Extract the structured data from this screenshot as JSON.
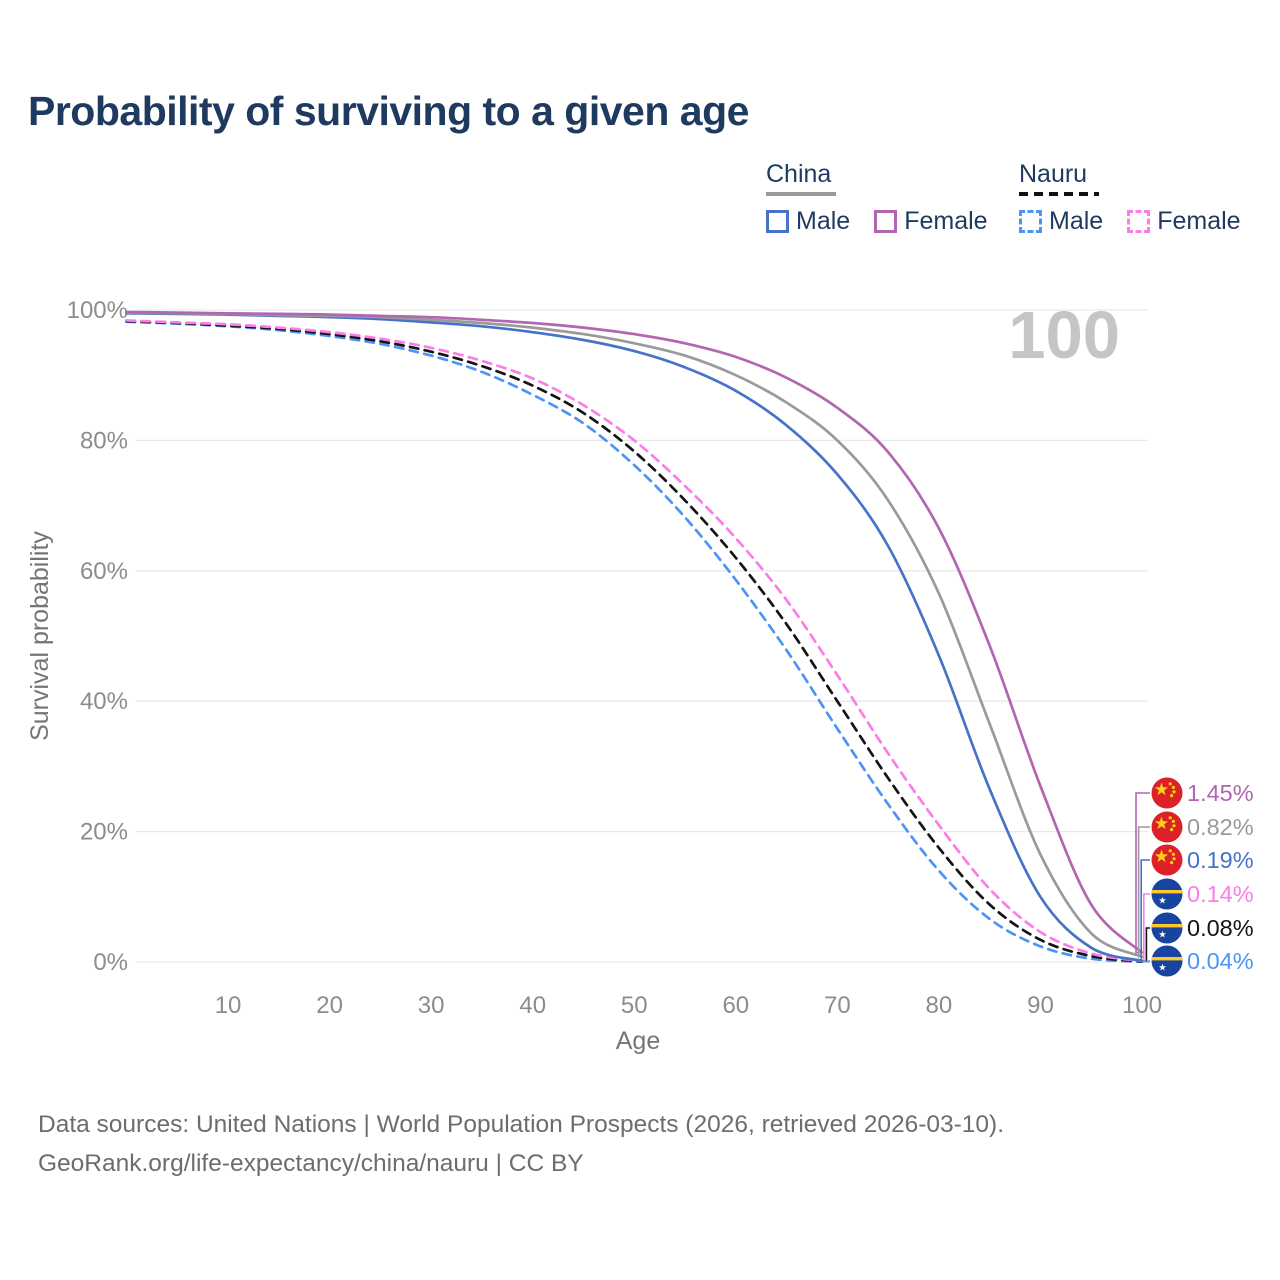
{
  "title": "Probability of surviving to a given age",
  "watermark": "100",
  "legend": {
    "china": {
      "label": "China",
      "male": "Male",
      "female": "Female"
    },
    "nauru": {
      "label": "Nauru",
      "male": "Male",
      "female": "Female"
    }
  },
  "axes": {
    "x_label": "Age",
    "y_label": "Survival probability",
    "x_ticks": [
      "10",
      "20",
      "30",
      "40",
      "50",
      "60",
      "70",
      "80",
      "90",
      "100"
    ],
    "y_ticks": [
      "0%",
      "20%",
      "40%",
      "60%",
      "80%",
      "100%"
    ]
  },
  "end_labels": [
    {
      "series": "china_female",
      "flag": "china",
      "value": "1.45%",
      "color": "#b266b2"
    },
    {
      "series": "china_all",
      "flag": "china",
      "value": "0.82%",
      "color": "#9a9a9a"
    },
    {
      "series": "china_male",
      "flag": "china",
      "value": "0.19%",
      "color": "#4673c8"
    },
    {
      "series": "nauru_female",
      "flag": "nauru",
      "value": "0.14%",
      "color": "#fb7de6"
    },
    {
      "series": "nauru_all",
      "flag": "nauru",
      "value": "0.08%",
      "color": "#141414"
    },
    {
      "series": "nauru_male",
      "flag": "nauru",
      "value": "0.04%",
      "color": "#4d94f5"
    }
  ],
  "footer": {
    "line1": "Data sources: United Nations | World Population Prospects (2026, retrieved 2026-03-10).",
    "line2": "GeoRank.org/life-expectancy/china/nauru | CC BY"
  },
  "chart_data": {
    "type": "line",
    "title": "Probability of surviving to a given age",
    "xlabel": "Age",
    "ylabel": "Survival probability",
    "xlim": [
      0,
      100
    ],
    "ylim": [
      0,
      100
    ],
    "grid": "horizontal",
    "legend_position": "top-right",
    "ages": [
      0,
      5,
      10,
      15,
      20,
      25,
      30,
      35,
      40,
      45,
      50,
      55,
      60,
      65,
      70,
      75,
      80,
      85,
      90,
      95,
      100
    ],
    "series": [
      {
        "id": "china_female",
        "name": "China Female",
        "country": "China",
        "sex": "Female",
        "style": "solid",
        "color": "#b266b2",
        "end_label": "1.45%",
        "values": [
          99.7,
          99.6,
          99.5,
          99.4,
          99.3,
          99.1,
          98.9,
          98.5,
          98.0,
          97.3,
          96.3,
          94.9,
          92.8,
          89.6,
          85.0,
          78.2,
          66.5,
          48.5,
          27.0,
          8.8,
          1.45
        ]
      },
      {
        "id": "china_all",
        "name": "China Both sexes",
        "country": "China",
        "sex": "All",
        "style": "solid",
        "color": "#9a9a9a",
        "end_label": "0.82%",
        "values": [
          99.6,
          99.5,
          99.4,
          99.2,
          99.1,
          98.9,
          98.5,
          98.0,
          97.3,
          96.3,
          94.9,
          93.0,
          90.0,
          85.8,
          80.0,
          70.8,
          56.5,
          36.5,
          16.5,
          4.4,
          0.82
        ]
      },
      {
        "id": "china_male",
        "name": "China Male",
        "country": "China",
        "sex": "Male",
        "style": "solid",
        "color": "#4673c8",
        "end_label": "0.19%",
        "values": [
          99.5,
          99.4,
          99.3,
          99.1,
          98.9,
          98.6,
          98.1,
          97.5,
          96.6,
          95.4,
          93.7,
          91.2,
          87.6,
          82.3,
          74.8,
          63.8,
          47.0,
          26.5,
          10.0,
          2.2,
          0.19
        ]
      },
      {
        "id": "nauru_female",
        "name": "Nauru Female",
        "country": "Nauru",
        "sex": "Female",
        "style": "dashed",
        "color": "#fb7de6",
        "end_label": "0.14%",
        "values": [
          98.4,
          98.1,
          97.8,
          97.3,
          96.6,
          95.6,
          94.2,
          92.2,
          89.5,
          85.4,
          80.0,
          73.0,
          65.0,
          55.5,
          44.0,
          32.0,
          21.0,
          11.2,
          4.6,
          1.3,
          0.14
        ]
      },
      {
        "id": "nauru_all",
        "name": "Nauru Both sexes",
        "country": "Nauru",
        "sex": "All",
        "style": "dashed",
        "color": "#141414",
        "end_label": "0.08%",
        "values": [
          98.3,
          98.0,
          97.6,
          97.1,
          96.3,
          95.2,
          93.6,
          91.4,
          88.4,
          84.2,
          78.3,
          70.8,
          62.0,
          51.8,
          40.0,
          28.2,
          17.5,
          8.8,
          3.4,
          0.9,
          0.08
        ]
      },
      {
        "id": "nauru_male",
        "name": "Nauru Male",
        "country": "Nauru",
        "sex": "Male",
        "style": "dashed",
        "color": "#4d94f5",
        "end_label": "0.04%",
        "values": [
          98.2,
          97.9,
          97.5,
          96.9,
          96.0,
          94.8,
          93.0,
          90.5,
          87.0,
          82.6,
          76.2,
          68.2,
          58.6,
          47.8,
          35.8,
          24.2,
          14.0,
          6.6,
          2.4,
          0.5,
          0.04
        ]
      }
    ]
  }
}
